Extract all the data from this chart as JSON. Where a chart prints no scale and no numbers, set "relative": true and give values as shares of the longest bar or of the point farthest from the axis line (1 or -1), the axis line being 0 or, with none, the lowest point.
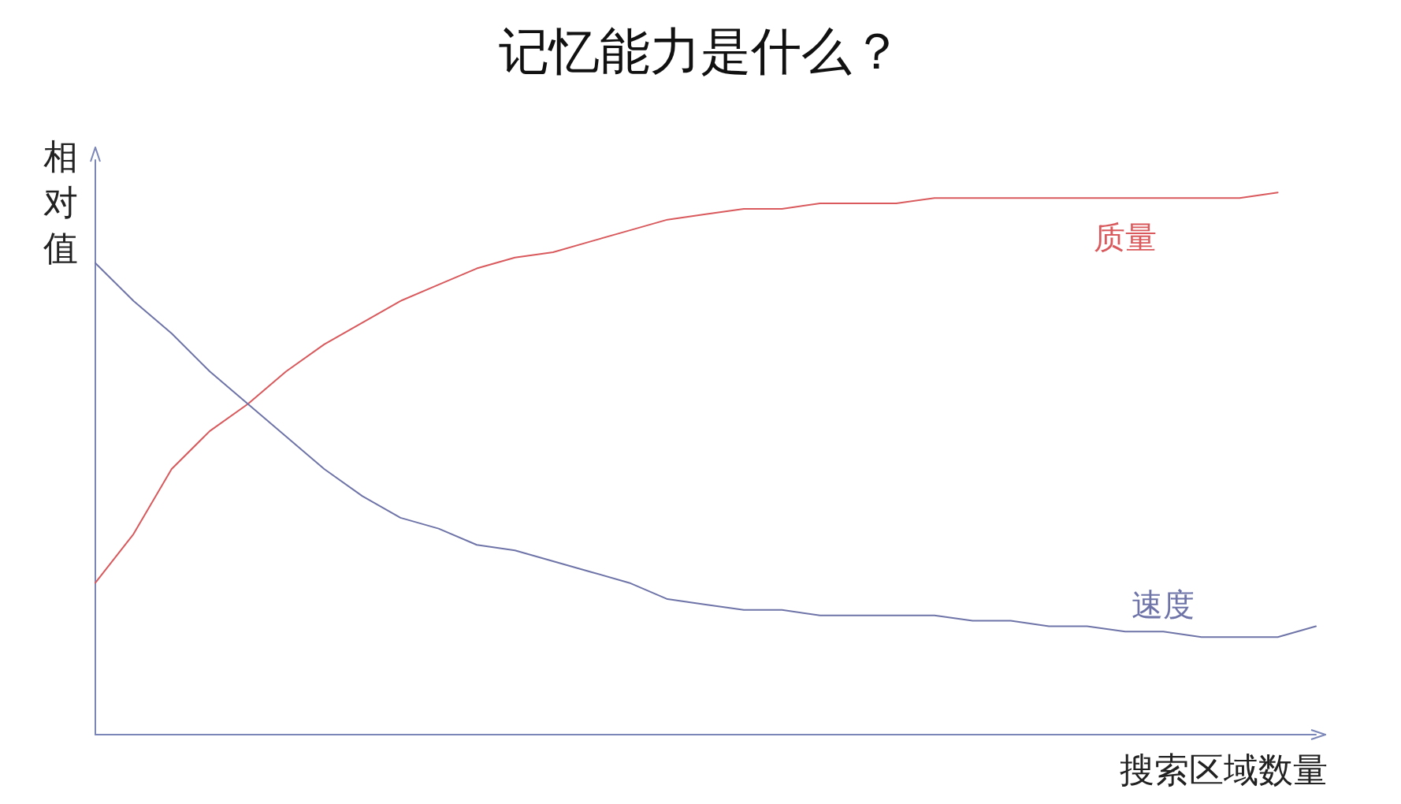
{
  "chart_data": {
    "type": "line",
    "title": "记忆能力是什么？",
    "xlabel": "搜索区域数量",
    "ylabel": "相对值",
    "relative": true,
    "grid": false,
    "legend": false,
    "marker": "none",
    "line_style": "solid",
    "categories": [
      null,
      null,
      null,
      null,
      null,
      null,
      null,
      null,
      null,
      null,
      null,
      null,
      null,
      null,
      null,
      null,
      null,
      null,
      null,
      null,
      null,
      null,
      null,
      null,
      null,
      null,
      null,
      null,
      null,
      null,
      null,
      null,
      null
    ],
    "series": [
      {
        "name": "质量",
        "color": "#d9595c",
        "values": [
          0.28,
          0.37,
          0.49,
          0.56,
          0.61,
          0.67,
          0.72,
          0.76,
          0.8,
          0.83,
          0.86,
          0.88,
          0.89,
          0.91,
          0.93,
          0.95,
          0.96,
          0.97,
          0.97,
          0.98,
          0.98,
          0.98,
          0.99,
          0.99,
          0.99,
          0.99,
          0.99,
          0.99,
          0.99,
          0.99,
          0.99,
          1,
          null
        ]
      },
      {
        "name": "速度",
        "color": "#6e74a8",
        "values": [
          0.87,
          0.8,
          0.74,
          0.67,
          0.61,
          0.55,
          0.49,
          0.44,
          0.4,
          0.38,
          0.35,
          0.34,
          0.32,
          0.3,
          0.28,
          0.25,
          0.24,
          0.23,
          0.23,
          0.22,
          0.22,
          0.22,
          0.22,
          0.21,
          0.21,
          0.2,
          0.2,
          0.19,
          0.19,
          0.18,
          0.18,
          0.18,
          0.2
        ]
      }
    ]
  }
}
